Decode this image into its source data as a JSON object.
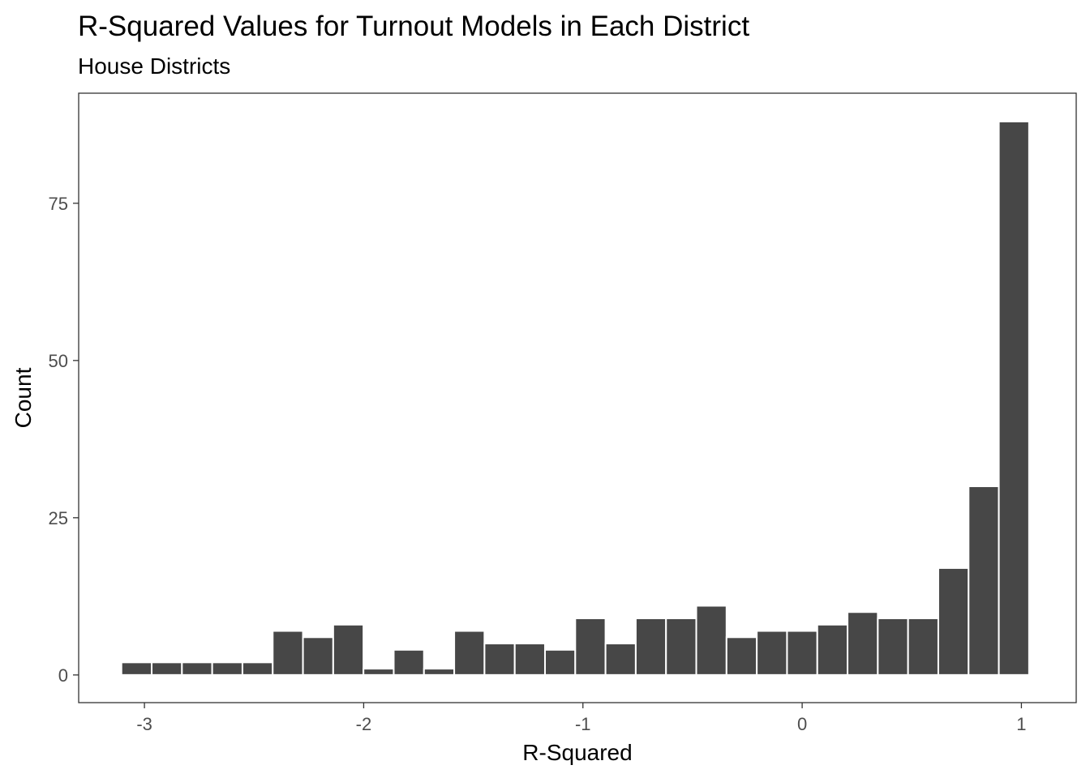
{
  "chart_data": {
    "type": "bar",
    "title": "R-Squared Values for Turnout Models in Each District",
    "subtitle": "House Districts",
    "xlabel": "R-Squared",
    "ylabel": "Count",
    "xlim": [
      -3.3,
      1.25
    ],
    "ylim": [
      -4.4,
      92.5
    ],
    "x_ticks": [
      -3,
      -2,
      -1,
      0,
      1
    ],
    "x_tick_labels": [
      "-3",
      "-2",
      "-1",
      "0",
      "1"
    ],
    "y_ticks": [
      0,
      25,
      50,
      75
    ],
    "y_tick_labels": [
      "0",
      "25",
      "50",
      "75"
    ],
    "bin_width": 0.1379,
    "bins": [
      {
        "x": -3.036,
        "count": 2
      },
      {
        "x": -2.898,
        "count": 2
      },
      {
        "x": -2.76,
        "count": 2
      },
      {
        "x": -2.622,
        "count": 2
      },
      {
        "x": -2.484,
        "count": 2
      },
      {
        "x": -2.346,
        "count": 7
      },
      {
        "x": -2.208,
        "count": 6
      },
      {
        "x": -2.07,
        "count": 8
      },
      {
        "x": -1.932,
        "count": 1
      },
      {
        "x": -1.794,
        "count": 4
      },
      {
        "x": -1.656,
        "count": 1
      },
      {
        "x": -1.518,
        "count": 7
      },
      {
        "x": -1.38,
        "count": 5
      },
      {
        "x": -1.242,
        "count": 5
      },
      {
        "x": -1.104,
        "count": 4
      },
      {
        "x": -0.966,
        "count": 9
      },
      {
        "x": -0.828,
        "count": 5
      },
      {
        "x": -0.69,
        "count": 9
      },
      {
        "x": -0.552,
        "count": 9
      },
      {
        "x": -0.414,
        "count": 11
      },
      {
        "x": -0.276,
        "count": 6
      },
      {
        "x": -0.138,
        "count": 7
      },
      {
        "x": 0.0,
        "count": 7
      },
      {
        "x": 0.138,
        "count": 8
      },
      {
        "x": 0.276,
        "count": 10
      },
      {
        "x": 0.414,
        "count": 9
      },
      {
        "x": 0.552,
        "count": 9
      },
      {
        "x": 0.69,
        "count": 17
      },
      {
        "x": 0.828,
        "count": 30
      },
      {
        "x": 0.966,
        "count": 88
      }
    ],
    "bar_color": "#474747",
    "bar_outline": "#ffffff",
    "panel_border": "#333333",
    "grid": false
  }
}
